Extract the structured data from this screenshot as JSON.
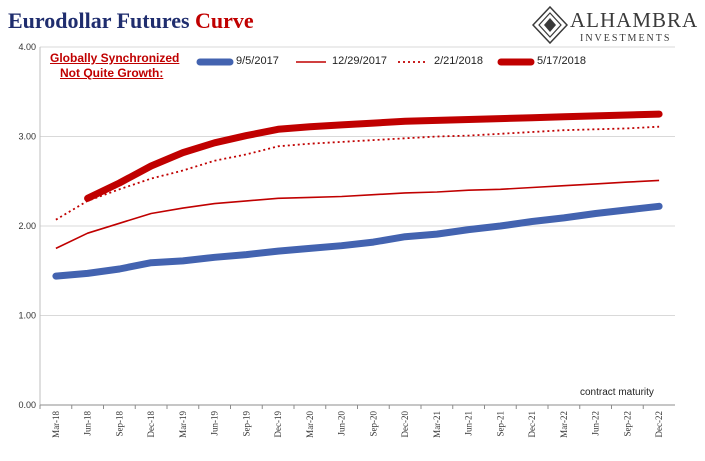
{
  "title": {
    "text": "Eurodollar Futures",
    "accent": "Curve"
  },
  "logo": {
    "name": "ALHAMBRA",
    "sub": "INVESTMENTS"
  },
  "annotation": {
    "line1": "Globally Synchronized",
    "line2": "Not Quite Growth:"
  },
  "x_note": "contract maturity",
  "colors": {
    "title": "#1f2d6e",
    "red": "#c00000",
    "blue": "#4363b0",
    "grid": "#d9d9d9"
  },
  "chart_data": {
    "type": "line",
    "categories": [
      "Mar-18",
      "Jun-18",
      "Sep-18",
      "Dec-18",
      "Mar-19",
      "Jun-19",
      "Sep-19",
      "Dec-19",
      "Mar-20",
      "Jun-20",
      "Sep-20",
      "Dec-20",
      "Mar-21",
      "Jun-21",
      "Sep-21",
      "Dec-21",
      "Mar-22",
      "Jun-22",
      "Sep-22",
      "Dec-22"
    ],
    "ylim": [
      0,
      4
    ],
    "yticks": [
      "0.00",
      "1.00",
      "2.00",
      "3.00",
      "4.00"
    ],
    "grid": "horizontal",
    "legend_position": "top",
    "series": [
      {
        "name": "9/5/2017",
        "color": "#4363b0",
        "style": "thick",
        "values": [
          1.44,
          1.47,
          1.52,
          1.59,
          1.61,
          1.65,
          1.68,
          1.72,
          1.75,
          1.78,
          1.82,
          1.88,
          1.91,
          1.96,
          2.0,
          2.05,
          2.09,
          2.14,
          2.18,
          2.22
        ]
      },
      {
        "name": "12/29/2017",
        "color": "#c00000",
        "style": "thin",
        "values": [
          1.75,
          1.92,
          2.03,
          2.14,
          2.2,
          2.25,
          2.28,
          2.31,
          2.32,
          2.33,
          2.35,
          2.37,
          2.38,
          2.4,
          2.41,
          2.43,
          2.45,
          2.47,
          2.49,
          2.51
        ]
      },
      {
        "name": "2/21/2018",
        "color": "#c00000",
        "style": "dotted",
        "values": [
          2.07,
          2.28,
          2.41,
          2.53,
          2.62,
          2.73,
          2.8,
          2.89,
          2.92,
          2.94,
          2.96,
          2.98,
          3.0,
          3.01,
          3.03,
          3.05,
          3.07,
          3.08,
          3.09,
          3.11
        ]
      },
      {
        "name": "5/17/2018",
        "color": "#c00000",
        "style": "thick",
        "values": [
          null,
          2.31,
          2.48,
          2.67,
          2.82,
          2.93,
          3.01,
          3.08,
          3.11,
          3.13,
          3.15,
          3.17,
          3.18,
          3.19,
          3.2,
          3.21,
          3.22,
          3.23,
          3.24,
          3.25
        ]
      }
    ]
  }
}
